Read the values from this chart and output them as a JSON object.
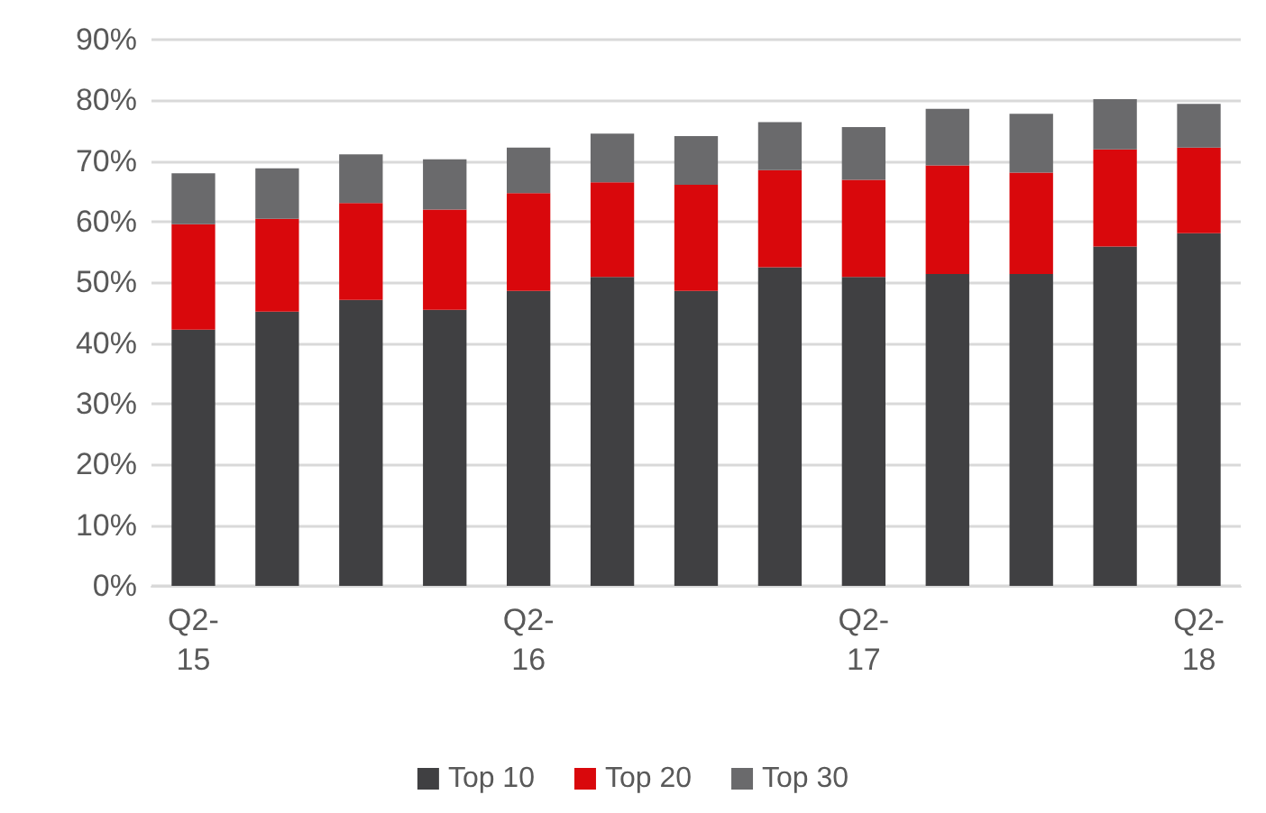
{
  "chart_data": {
    "type": "bar",
    "stacked": true,
    "categories": [
      "Q2-15",
      null,
      null,
      null,
      "Q2-16",
      null,
      null,
      null,
      "Q2-17",
      null,
      null,
      null,
      "Q2-18"
    ],
    "series": [
      {
        "name": "Top 10",
        "color": "#404042",
        "values": [
          42.2,
          45.2,
          47.1,
          45.5,
          48.6,
          50.9,
          48.6,
          52.5,
          50.9,
          51.4,
          51.4,
          55.9,
          58.1
        ]
      },
      {
        "name": "Top 20",
        "color": "#d9080c",
        "values": [
          17.4,
          15.3,
          16.0,
          16.5,
          16.1,
          15.6,
          17.5,
          16.0,
          16.0,
          17.9,
          16.7,
          16.0,
          14.1
        ]
      },
      {
        "name": "Top 30",
        "color": "#6a6a6c",
        "values": [
          8.4,
          8.3,
          8.0,
          8.3,
          7.5,
          8.0,
          8.0,
          7.9,
          8.7,
          9.3,
          9.7,
          8.3,
          7.2
        ]
      }
    ],
    "ylim": [
      0,
      90
    ],
    "yticks": [
      {
        "value": 0,
        "label": "0%"
      },
      {
        "value": 10,
        "label": "10%"
      },
      {
        "value": 20,
        "label": "20%"
      },
      {
        "value": 30,
        "label": "30%"
      },
      {
        "value": 40,
        "label": "40%"
      },
      {
        "value": 50,
        "label": "50%"
      },
      {
        "value": 60,
        "label": "60%"
      },
      {
        "value": 70,
        "label": "70%"
      },
      {
        "value": 80,
        "label": "80%"
      },
      {
        "value": 90,
        "label": "90%"
      }
    ],
    "grid": "y",
    "legend": "bottom"
  }
}
